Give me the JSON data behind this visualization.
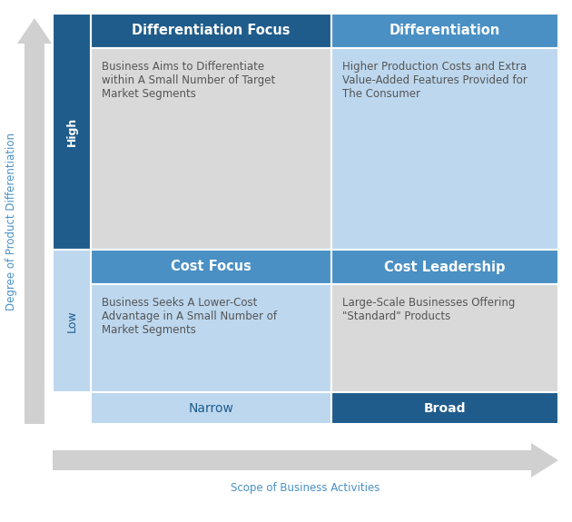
{
  "bg_color": "#ffffff",
  "dark_blue": "#1F5C8B",
  "medium_blue": "#4A90C4",
  "light_blue": "#BDD7EE",
  "light_gray": "#D9D9D9",
  "cells": [
    {
      "row": 0,
      "col": 0,
      "header": "Differentiation Focus",
      "header_bg": "#1F5C8B",
      "body_bg": "#D9D9D9",
      "body_text": "Business Aims to Differentiate\nwithin A Small Number of Target\nMarket Segments"
    },
    {
      "row": 0,
      "col": 1,
      "header": "Differentiation",
      "header_bg": "#4A90C4",
      "body_bg": "#BDD7EE",
      "body_text": "Higher Production Costs and Extra\nValue-Added Features Provided for\nThe Consumer"
    },
    {
      "row": 1,
      "col": 0,
      "header": "Cost Focus",
      "header_bg": "#4A90C4",
      "body_bg": "#BDD7EE",
      "body_text": "Business Seeks A Lower-Cost\nAdvantage in A Small Number of\nMarket Segments"
    },
    {
      "row": 1,
      "col": 1,
      "header": "Cost Leadership",
      "header_bg": "#4A90C4",
      "body_bg": "#D9D9D9",
      "body_text": "Large-Scale Businesses Offering\n\"Standard\" Products"
    }
  ],
  "row_labels": [
    "High",
    "Low"
  ],
  "row_label_bg": [
    "#1F5C8B",
    "#BDD7EE"
  ],
  "row_label_text_color": [
    "#ffffff",
    "#1F5C8B"
  ],
  "col_labels": [
    "Narrow",
    "Broad"
  ],
  "col_label_bg": [
    "#BDD7EE",
    "#1F5C8B"
  ],
  "col_label_text_color": [
    "#1F5C8B",
    "#ffffff"
  ],
  "y_axis_label": "Degree of Product Differentiation",
  "x_axis_label": "Scope of Business Activities",
  "axis_label_color": "#4A90C4",
  "arrow_color": "#d0d0d0"
}
